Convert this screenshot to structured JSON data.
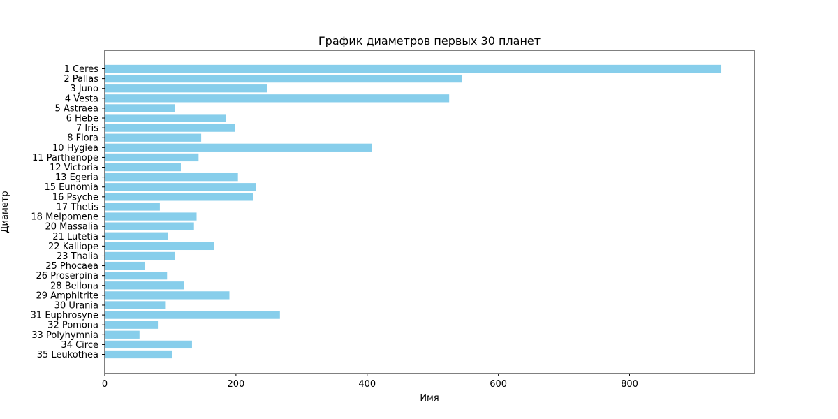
{
  "chart_data": {
    "type": "bar",
    "orientation": "horizontal",
    "title": "График диаметров первых 30 планет",
    "xlabel": "Имя",
    "ylabel": "Диаметр",
    "xlim": [
      0,
      990
    ],
    "xticks": [
      0,
      200,
      400,
      600,
      800
    ],
    "grid": false,
    "bar_color": "#87ceeb",
    "categories": [
      "1 Ceres",
      "2 Pallas",
      "3 Juno",
      "4 Vesta",
      "5 Astraea",
      "6 Hebe",
      "7 Iris",
      "8 Flora",
      "10 Hygiea",
      "11 Parthenope",
      "12 Victoria",
      "13 Egeria",
      "15 Eunomia",
      "16 Psyche",
      "17 Thetis",
      "18 Melpomene",
      "20 Massalia",
      "21 Lutetia",
      "22 Kalliope",
      "23 Thalia",
      "25 Phocaea",
      "26 Proserpina",
      "28 Bellona",
      "29 Amphitrite",
      "30 Urania",
      "31 Euphrosyne",
      "32 Pomona",
      "33 Polyhymnia",
      "34 Circe",
      "35 Leukothea"
    ],
    "values": [
      940,
      545,
      247,
      525,
      107,
      185,
      199,
      147,
      407,
      143,
      116,
      203,
      231,
      226,
      84,
      140,
      136,
      96,
      167,
      107,
      61,
      95,
      121,
      190,
      92,
      267,
      81,
      53,
      133,
      103
    ]
  }
}
